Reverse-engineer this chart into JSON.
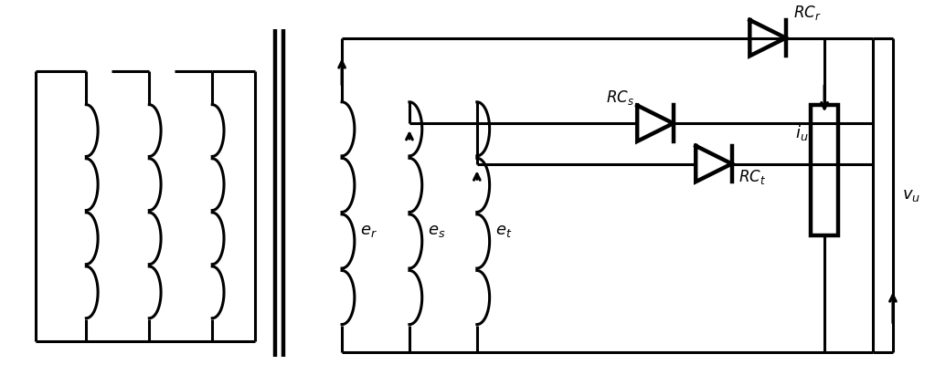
{
  "fig_width": 10.23,
  "fig_height": 4.11,
  "dpi": 100,
  "lw": 2.2,
  "lw2": 3.2,
  "color": "black",
  "bg_color": "white"
}
